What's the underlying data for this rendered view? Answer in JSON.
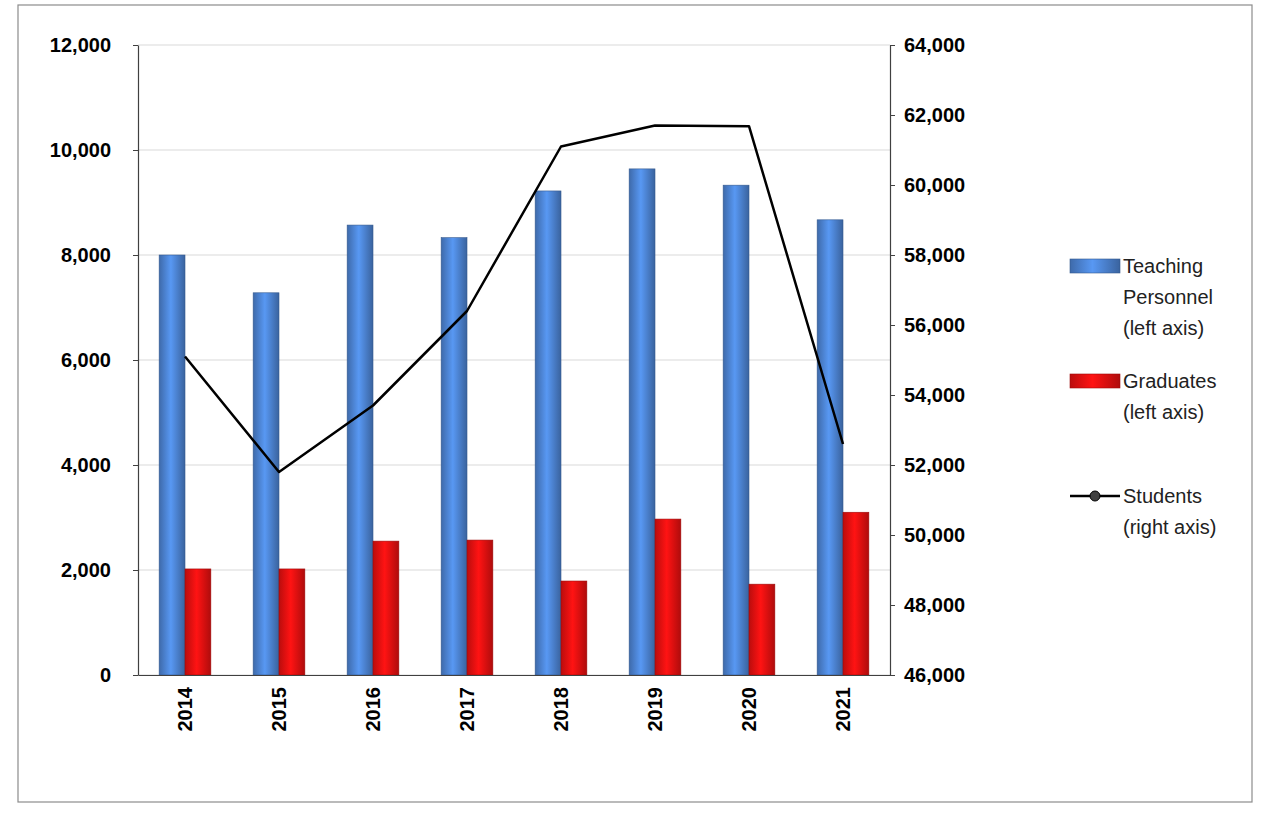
{
  "chart_data": {
    "type": "bar",
    "categories": [
      "2014",
      "2015",
      "2016",
      "2017",
      "2018",
      "2019",
      "2020",
      "2021"
    ],
    "series": [
      {
        "name": "Teaching Personnel (left axis)",
        "color": "#4a7fcb",
        "values": [
          8000,
          7280,
          8570,
          8330,
          9220,
          9640,
          9330,
          8670
        ]
      },
      {
        "name": "Graduates (left axis)",
        "color": "#e01010",
        "values": [
          2020,
          2020,
          2550,
          2570,
          1790,
          2970,
          1730,
          3100
        ]
      },
      {
        "name": "Students (right axis)",
        "type": "line",
        "axis": "y2",
        "color": "#000000",
        "values": [
          55100,
          51800,
          53700,
          56400,
          61100,
          61700,
          61680,
          52600
        ]
      }
    ],
    "ylim": [
      0,
      12000
    ],
    "yticks": [
      0,
      {
        "value": 2000,
        "label": "2,000"
      },
      {
        "value": 4000,
        "label": "4,000"
      },
      {
        "value": 6000,
        "label": "6,000"
      },
      {
        "value": 8000,
        "label": "8,000"
      },
      {
        "value": 10000,
        "label": "10,000"
      },
      {
        "value": 12000,
        "label": "12,000"
      }
    ],
    "y2lim": [
      46000,
      64000
    ],
    "y2ticks": [
      {
        "value": 46000,
        "label": "46,000"
      },
      {
        "value": 48000,
        "label": "48,000"
      },
      {
        "value": 50000,
        "label": "50,000"
      },
      {
        "value": 52000,
        "label": "52,000"
      },
      {
        "value": 54000,
        "label": "54,000"
      },
      {
        "value": 56000,
        "label": "56,000"
      },
      {
        "value": 58000,
        "label": "58,000"
      },
      {
        "value": 60000,
        "label": "60,000"
      },
      {
        "value": 62000,
        "label": "62,000"
      },
      {
        "value": 64000,
        "label": "64,000"
      }
    ],
    "grid": true,
    "legend": "right"
  }
}
